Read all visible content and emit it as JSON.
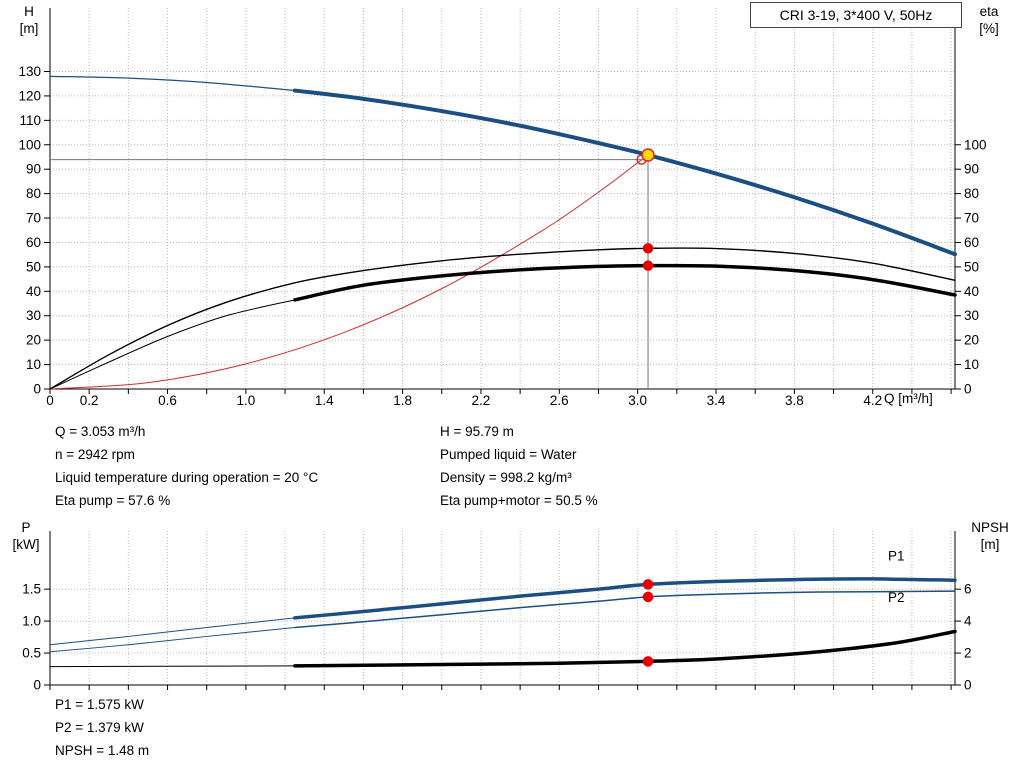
{
  "info_top": {
    "left": [
      "Q = 3.053 m³/h",
      "n = 2942 rpm",
      "Liquid temperature during operation = 20 °C",
      "Eta pump = 57.6 %"
    ],
    "right": [
      "H = 95.79 m",
      "Pumped liquid = Water",
      "Density = 998.2 kg/m³",
      "Eta pump+motor = 50.5 %"
    ]
  },
  "info_bottom": [
    "P1 = 1.575 kW",
    "P2 = 1.379 kW",
    "NPSH = 1.48 m"
  ],
  "colors": {
    "curve_blue": "#1b4f82",
    "curve_red": "#d42a2a",
    "marker_red": "#e60000",
    "marker_yellow": "#ffd700",
    "crosshair_gray": "#777777"
  },
  "chart_data": [
    {
      "type": "line",
      "title": "CRI 3-19, 3*400 V, 50Hz",
      "x_label": "Q [m³/h]",
      "y_left_label": [
        "H",
        "[m]"
      ],
      "y_right_label": [
        "eta",
        "[%]"
      ],
      "x_range": [
        0,
        4.62
      ],
      "x_minor_tick_step": 0.2,
      "x_ticks": [
        {
          "v": 0,
          "l": "0"
        },
        {
          "v": 0.2,
          "l": "0.2"
        },
        {
          "v": 0.6,
          "l": "0.6"
        },
        {
          "v": 1.0,
          "l": "1.0"
        },
        {
          "v": 1.4,
          "l": "1.4"
        },
        {
          "v": 1.8,
          "l": "1.8"
        },
        {
          "v": 2.2,
          "l": "2.2"
        },
        {
          "v": 2.6,
          "l": "2.6"
        },
        {
          "v": 3.0,
          "l": "3.0"
        },
        {
          "v": 3.4,
          "l": "3.4"
        },
        {
          "v": 3.8,
          "l": "3.8"
        },
        {
          "v": 4.2,
          "l": "4.2"
        }
      ],
      "y_left_range": [
        0,
        156
      ],
      "y_left_ticks": [
        {
          "v": 0,
          "l": "0"
        },
        {
          "v": 10,
          "l": "10"
        },
        {
          "v": 20,
          "l": "20"
        },
        {
          "v": 30,
          "l": "30"
        },
        {
          "v": 40,
          "l": "40"
        },
        {
          "v": 50,
          "l": "50"
        },
        {
          "v": 60,
          "l": "60"
        },
        {
          "v": 70,
          "l": "70"
        },
        {
          "v": 80,
          "l": "80"
        },
        {
          "v": 90,
          "l": "90"
        },
        {
          "v": 100,
          "l": "100"
        },
        {
          "v": 110,
          "l": "110"
        },
        {
          "v": 120,
          "l": "120"
        },
        {
          "v": 130,
          "l": "130"
        }
      ],
      "y_right_ticks": [
        {
          "v": 0,
          "l": "0"
        },
        {
          "v": 10,
          "l": "10"
        },
        {
          "v": 20,
          "l": "20"
        },
        {
          "v": 30,
          "l": "30"
        },
        {
          "v": 40,
          "l": "40"
        },
        {
          "v": 50,
          "l": "50"
        },
        {
          "v": 60,
          "l": "60"
        },
        {
          "v": 70,
          "l": "70"
        },
        {
          "v": 80,
          "l": "80"
        },
        {
          "v": 90,
          "l": "90"
        },
        {
          "v": 100,
          "l": "100"
        }
      ],
      "right_unit_per_left_unit": 1,
      "series": [
        {
          "name": "qh-curve-lead",
          "color": "#1b4f82",
          "width": 1.2,
          "axis": "left",
          "points": [
            [
              0,
              128
            ],
            [
              0.4,
              127.3
            ],
            [
              0.8,
              125.5
            ],
            [
              1.25,
              122.2
            ]
          ]
        },
        {
          "name": "qh-curve",
          "color": "#1b4f82",
          "width": 4,
          "axis": "left",
          "points": [
            [
              1.25,
              122.2
            ],
            [
              1.6,
              118.8
            ],
            [
              2.0,
              113.8
            ],
            [
              2.4,
              107.8
            ],
            [
              2.8,
              100.7
            ],
            [
              3.053,
              95.79
            ],
            [
              3.4,
              88.2
            ],
            [
              3.8,
              78.5
            ],
            [
              4.2,
              67.7
            ],
            [
              4.62,
              55.2
            ]
          ]
        },
        {
          "name": "system-curve",
          "color": "#d42a2a",
          "width": 1,
          "axis": "left",
          "points": [
            [
              0,
              0
            ],
            [
              0.5,
              2.6
            ],
            [
              1.0,
              10.3
            ],
            [
              1.5,
              23.1
            ],
            [
              2.0,
              41.1
            ],
            [
              2.5,
              64.2
            ],
            [
              2.8,
              80.6
            ],
            [
              3.02,
              93.9
            ]
          ]
        },
        {
          "name": "eta-pump-curve",
          "color": "#000000",
          "width": 1.4,
          "axis": "right",
          "points": [
            [
              0,
              0
            ],
            [
              0.3,
              14
            ],
            [
              0.6,
              26
            ],
            [
              0.9,
              35.5
            ],
            [
              1.25,
              43.5
            ],
            [
              1.6,
              48.5
            ],
            [
              2.0,
              52.5
            ],
            [
              2.4,
              55.2
            ],
            [
              2.8,
              57.0
            ],
            [
              3.053,
              57.6
            ],
            [
              3.4,
              57.5
            ],
            [
              3.8,
              55.5
            ],
            [
              4.2,
              51.5
            ],
            [
              4.62,
              44.5
            ]
          ]
        },
        {
          "name": "eta-pump-motor-lead",
          "color": "#000000",
          "width": 1,
          "axis": "right",
          "points": [
            [
              0,
              0
            ],
            [
              0.3,
              11
            ],
            [
              0.6,
              21.5
            ],
            [
              0.9,
              30
            ],
            [
              1.25,
              36.5
            ]
          ]
        },
        {
          "name": "eta-pump-motor-curve",
          "color": "#000000",
          "width": 3.5,
          "axis": "right",
          "points": [
            [
              1.25,
              36.5
            ],
            [
              1.6,
              42.5
            ],
            [
              2.0,
              46.3
            ],
            [
              2.4,
              48.8
            ],
            [
              2.8,
              50.2
            ],
            [
              3.053,
              50.5
            ],
            [
              3.4,
              50.3
            ],
            [
              3.8,
              48.5
            ],
            [
              4.2,
              44.8
            ],
            [
              4.62,
              38.5
            ]
          ]
        }
      ],
      "crosshairs": [
        {
          "name": "duty-vline",
          "x": 3.053,
          "from": 0,
          "to": 95.79
        },
        {
          "name": "duty-hline",
          "y": 93.9,
          "from": 0,
          "to": 3.053
        }
      ],
      "markers": [
        {
          "name": "system-intersection-point",
          "x": 3.02,
          "v": 93.9,
          "axis": "left",
          "fill": "none",
          "stroke": "#d42a2a",
          "r": 4.5
        },
        {
          "name": "duty-point",
          "x": 3.053,
          "v": 95.79,
          "axis": "left",
          "fill": "#ffd700",
          "stroke": "#d42a2a",
          "r": 6
        },
        {
          "name": "eta-pump-point",
          "x": 3.053,
          "v": 57.6,
          "axis": "right",
          "fill": "#e60000",
          "stroke": "#e60000",
          "r": 4.5
        },
        {
          "name": "eta-pump-motor-point",
          "x": 3.053,
          "v": 50.5,
          "axis": "right",
          "fill": "#e60000",
          "stroke": "#e60000",
          "r": 4.5
        }
      ]
    },
    {
      "type": "line",
      "x_label": "",
      "y_left_label": [
        "P",
        "[kW]"
      ],
      "y_right_label": [
        "NPSH",
        "[m]"
      ],
      "x_range": [
        0,
        4.62
      ],
      "x_minor_tick_step": 0.2,
      "x_ticks": [],
      "y_left_range": [
        0,
        2.41
      ],
      "y_left_ticks": [
        {
          "v": 0,
          "l": "0"
        },
        {
          "v": 0.5,
          "l": "0.5"
        },
        {
          "v": 1.0,
          "l": "1.0"
        },
        {
          "v": 1.5,
          "l": "1.5"
        }
      ],
      "y_right_ticks": [
        {
          "v": 0,
          "l": "0"
        },
        {
          "v": 2,
          "l": "2"
        },
        {
          "v": 4,
          "l": "4"
        },
        {
          "v": 6,
          "l": "6"
        }
      ],
      "right_unit_per_left_unit": 0.25,
      "series": [
        {
          "name": "p1-curve-lead",
          "color": "#1b4f82",
          "width": 1,
          "axis": "left",
          "points": [
            [
              0,
              0.63
            ],
            [
              0.4,
              0.76
            ],
            [
              0.8,
              0.9
            ],
            [
              1.25,
              1.05
            ]
          ]
        },
        {
          "name": "p1-curve",
          "color": "#1b4f82",
          "width": 3.5,
          "axis": "left",
          "points": [
            [
              1.25,
              1.05
            ],
            [
              1.6,
              1.15
            ],
            [
              2.0,
              1.27
            ],
            [
              2.4,
              1.39
            ],
            [
              2.8,
              1.5
            ],
            [
              3.053,
              1.575
            ],
            [
              3.4,
              1.62
            ],
            [
              3.8,
              1.65
            ],
            [
              4.2,
              1.66
            ],
            [
              4.62,
              1.64
            ]
          ]
        },
        {
          "name": "p2-curve-lead",
          "color": "#1b4f82",
          "width": 1,
          "axis": "left",
          "points": [
            [
              0,
              0.52
            ],
            [
              0.4,
              0.63
            ],
            [
              0.8,
              0.76
            ],
            [
              1.25,
              0.9
            ]
          ]
        },
        {
          "name": "p2-curve",
          "color": "#1b4f82",
          "width": 1.5,
          "axis": "left",
          "points": [
            [
              1.25,
              0.9
            ],
            [
              1.6,
              0.99
            ],
            [
              2.0,
              1.1
            ],
            [
              2.4,
              1.21
            ],
            [
              2.8,
              1.31
            ],
            [
              3.053,
              1.379
            ],
            [
              3.4,
              1.42
            ],
            [
              3.8,
              1.45
            ],
            [
              4.2,
              1.46
            ],
            [
              4.62,
              1.47
            ]
          ]
        },
        {
          "name": "npsh-curve-lead",
          "color": "#000000",
          "width": 1,
          "axis": "right",
          "points": [
            [
              0,
              1.15
            ],
            [
              0.6,
              1.17
            ],
            [
              1.25,
              1.2
            ]
          ]
        },
        {
          "name": "npsh-curve",
          "color": "#000000",
          "width": 3.5,
          "axis": "right",
          "points": [
            [
              1.25,
              1.2
            ],
            [
              2.0,
              1.28
            ],
            [
              2.6,
              1.36
            ],
            [
              3.053,
              1.48
            ],
            [
              3.4,
              1.63
            ],
            [
              3.8,
              1.95
            ],
            [
              4.1,
              2.3
            ],
            [
              4.35,
              2.7
            ],
            [
              4.62,
              3.35
            ]
          ]
        }
      ],
      "crosshairs": [],
      "markers": [
        {
          "name": "p1-point",
          "x": 3.053,
          "v": 1.575,
          "axis": "left",
          "fill": "#e60000",
          "stroke": "#e60000",
          "r": 4.5
        },
        {
          "name": "p2-point",
          "x": 3.053,
          "v": 1.379,
          "axis": "left",
          "fill": "#e60000",
          "stroke": "#e60000",
          "r": 4.5
        },
        {
          "name": "npsh-point",
          "x": 3.053,
          "v": 1.48,
          "axis": "right",
          "fill": "#e60000",
          "stroke": "#e60000",
          "r": 4.5
        }
      ],
      "series_labels": [
        {
          "text": "P1",
          "x": 4.32,
          "v": 1.95,
          "axis": "left",
          "color": "#1b4f82"
        },
        {
          "text": "P2",
          "x": 4.32,
          "v": 1.3,
          "axis": "left",
          "color": "#1b4f82"
        }
      ]
    }
  ]
}
